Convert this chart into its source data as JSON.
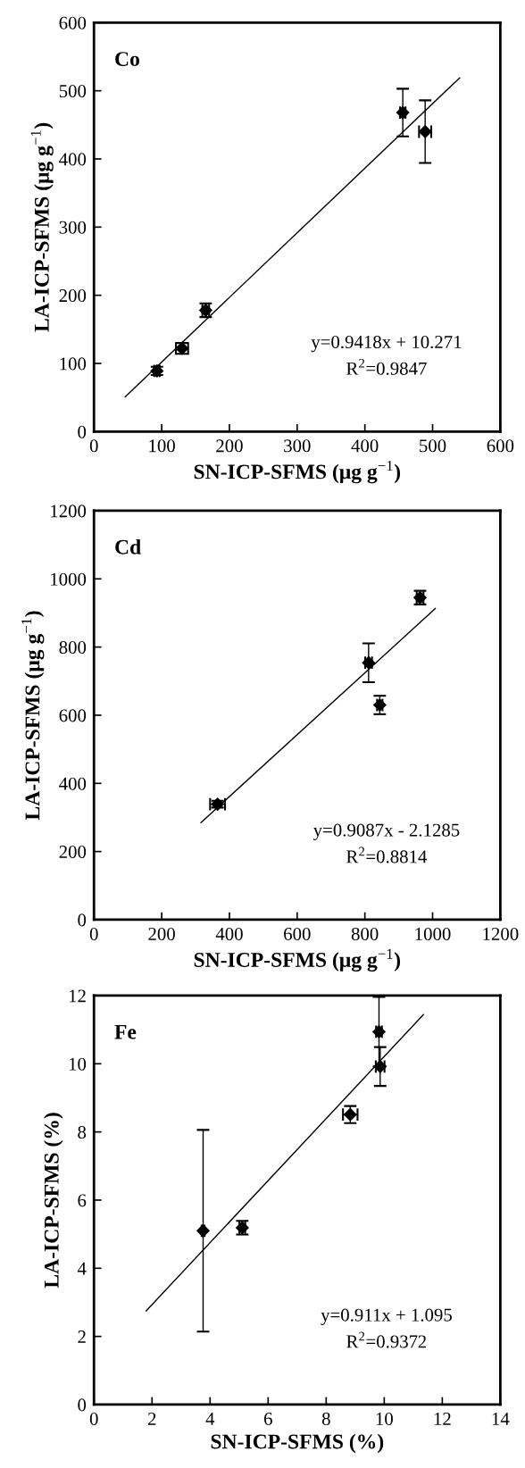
{
  "chart_data": [
    {
      "type": "scatter",
      "title": "Co",
      "xlabel": "SN-ICP-SFMS (μg g$^{−1}$)",
      "ylabel": "LA-ICP-SFMS (μg g$^{−1}$)",
      "xlim": [
        0,
        600
      ],
      "ylim": [
        0,
        600
      ],
      "xticks": [
        0,
        100,
        200,
        300,
        400,
        500,
        600
      ],
      "yticks": [
        0,
        100,
        200,
        300,
        400,
        500,
        600
      ],
      "annotations": [
        "y=0.9418x + 10.271",
        "R$^{2}$=0.9847"
      ],
      "series": [
        {
          "marker": "diamond",
          "color": "#000000",
          "x": [
            93,
            130,
            165,
            456,
            489
          ],
          "values": [
            89,
            122,
            178,
            468,
            440
          ],
          "errors": [
            6,
            8,
            10,
            35,
            46
          ],
          "xerrors": [
            4,
            9,
            5,
            4,
            9
          ]
        },
        {
          "type": "line",
          "marker": "none",
          "color": "#000000",
          "line_style": "solid",
          "x": [
            46,
            540
          ],
          "values": [
            51,
            519
          ]
        }
      ]
    },
    {
      "type": "scatter",
      "title": "Cd",
      "xlabel": "SN-ICP-SFMS (μg g$^{−1}$)",
      "ylabel": "LA-ICP-SFMS (μg g$^{−1}$)",
      "xlim": [
        0,
        1200
      ],
      "ylim": [
        0,
        1200
      ],
      "xticks": [
        0,
        200,
        400,
        600,
        800,
        1000,
        1200
      ],
      "yticks": [
        0,
        200,
        400,
        600,
        800,
        1000,
        1200
      ],
      "annotations": [
        "y=0.9087x - 2.1285",
        "R$^{2}$=0.8814"
      ],
      "series": [
        {
          "marker": "diamond",
          "color": "#000000",
          "x": [
            365,
            811,
            844,
            963
          ],
          "values": [
            339,
            754,
            630,
            945
          ],
          "errors": [
            10,
            57,
            27,
            20
          ],
          "xerrors": [
            22,
            10,
            8,
            10
          ]
        },
        {
          "type": "line",
          "marker": "none",
          "color": "#000000",
          "line_style": "solid",
          "x": [
            316,
            1008
          ],
          "values": [
            285,
            913
          ]
        }
      ]
    },
    {
      "type": "scatter",
      "title": "Fe",
      "xlabel": "SN-ICP-SFMS (%)",
      "ylabel": "LA-ICP-SFMS (%)",
      "xlim": [
        0,
        14
      ],
      "ylim": [
        0,
        12
      ],
      "xticks": [
        0,
        2,
        4,
        6,
        8,
        10,
        12,
        14
      ],
      "yticks": [
        0,
        2,
        4,
        6,
        8,
        10,
        12
      ],
      "annotations": [
        "y=0.911x + 1.095",
        "R$^{2}$=0.9372"
      ],
      "series": [
        {
          "marker": "diamond",
          "color": "#000000",
          "x": [
            3.76,
            5.11,
            8.83,
            9.86,
            9.82
          ],
          "values": [
            5.1,
            5.19,
            8.51,
            9.92,
            10.94
          ],
          "errors": [
            2.96,
            0.2,
            0.25,
            0.57,
            1.02
          ],
          "xerrors": [
            0.05,
            0.1,
            0.25,
            0.15,
            0.1
          ]
        },
        {
          "type": "line",
          "marker": "none",
          "color": "#000000",
          "line_style": "solid",
          "x": [
            1.8,
            11.35
          ],
          "values": [
            2.75,
            11.44
          ]
        }
      ]
    }
  ]
}
